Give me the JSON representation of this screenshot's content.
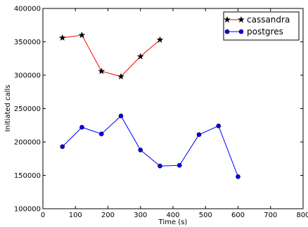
{
  "chart_data": {
    "type": "line",
    "title": "",
    "xlabel": "Time (s)",
    "ylabel": "Initiated calls",
    "xlim": [
      0,
      800
    ],
    "ylim": [
      100000,
      400000
    ],
    "x_ticks": [
      0,
      100,
      200,
      300,
      400,
      500,
      600,
      700,
      800
    ],
    "y_ticks": [
      100000,
      150000,
      200000,
      250000,
      300000,
      350000,
      400000
    ],
    "x_tick_labels": [
      "0",
      "100",
      "200",
      "300",
      "400",
      "500",
      "600",
      "700",
      "800"
    ],
    "y_tick_labels": [
      "100000",
      "150000",
      "200000",
      "250000",
      "300000",
      "350000",
      "400000"
    ],
    "grid": false,
    "legend_position": "top-right",
    "series": [
      {
        "name": "cassandra",
        "color": "#ff0000",
        "marker": "star",
        "x": [
          60,
          120,
          180,
          240,
          300,
          360
        ],
        "y": [
          356000,
          360000,
          306000,
          298000,
          328000,
          353000
        ]
      },
      {
        "name": "postgres",
        "color": "#0000ff",
        "marker": "circle",
        "x": [
          60,
          120,
          180,
          240,
          300,
          360,
          420,
          480,
          540,
          600
        ],
        "y": [
          193000,
          222000,
          212000,
          239000,
          188000,
          164000,
          165000,
          211000,
          224000,
          148000
        ]
      }
    ]
  }
}
